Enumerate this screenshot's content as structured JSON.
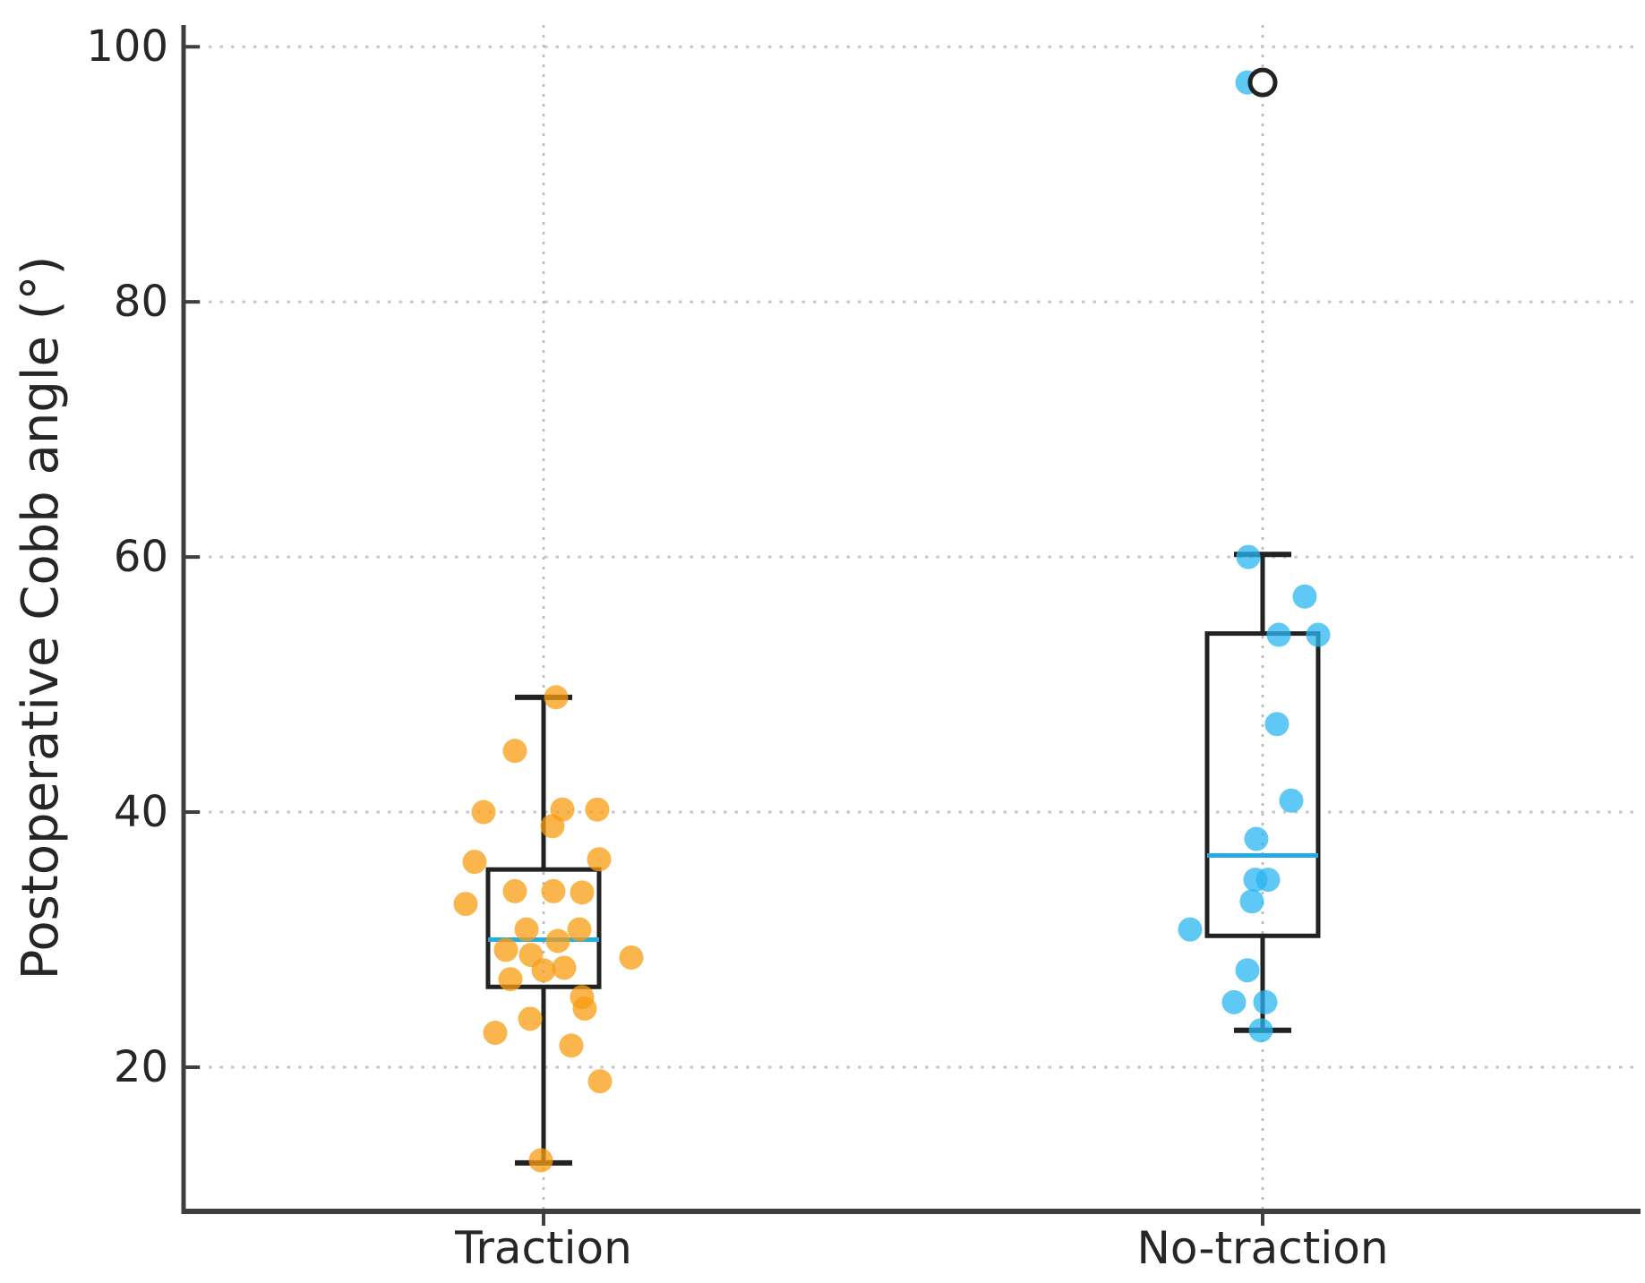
{
  "figure": {
    "background": "#ffffff"
  },
  "chart_data": {
    "type": "boxplot",
    "title": "",
    "xlabel": "",
    "ylabel": "Postoperative Cobb angle (°)",
    "ylim": [
      8.7,
      101.7
    ],
    "yticks": [
      20,
      40,
      60,
      80,
      100
    ],
    "grid": "dotted horizontal gridlines at yticks; dotted vertical gridline at each category; no top/right spines",
    "legend": "none",
    "categories": [
      "Traction",
      "No-traction"
    ],
    "style": {
      "background": "#ffffff",
      "grid_color": "#c6c6c6",
      "category_grid_color": "#b8b8b8",
      "axis_color": "#3f3f3f",
      "box_color": "#222222",
      "median_color": "#29ABE2",
      "text_color": "#262626",
      "outlier_fill": "#ffffff",
      "point_opacity": 0.75
    },
    "groups": [
      {
        "label": "Traction",
        "point_color": "#F89C12",
        "box": {
          "whisker_low": 12.5,
          "q1": 26.3,
          "median": 30.0,
          "q3": 35.5,
          "whisker_high": 49.0
        },
        "outliers": [],
        "points": [
          {
            "v": 49.0,
            "dx": 14
          },
          {
            "v": 44.8,
            "dx": -32
          },
          {
            "v": 40.0,
            "dx": -67
          },
          {
            "v": 40.2,
            "dx": 21
          },
          {
            "v": 40.2,
            "dx": 60
          },
          {
            "v": 38.9,
            "dx": 10
          },
          {
            "v": 36.1,
            "dx": -77
          },
          {
            "v": 36.3,
            "dx": 62
          },
          {
            "v": 33.8,
            "dx": -32
          },
          {
            "v": 33.8,
            "dx": 11
          },
          {
            "v": 33.7,
            "dx": 43
          },
          {
            "v": 32.8,
            "dx": -87
          },
          {
            "v": 30.8,
            "dx": -19
          },
          {
            "v": 30.8,
            "dx": 40
          },
          {
            "v": 29.9,
            "dx": 16
          },
          {
            "v": 29.2,
            "dx": -42
          },
          {
            "v": 28.8,
            "dx": -14
          },
          {
            "v": 28.6,
            "dx": 98
          },
          {
            "v": 27.8,
            "dx": 23
          },
          {
            "v": 27.6,
            "dx": 0
          },
          {
            "v": 26.9,
            "dx": -37
          },
          {
            "v": 25.5,
            "dx": 43
          },
          {
            "v": 24.6,
            "dx": 46
          },
          {
            "v": 23.8,
            "dx": -15
          },
          {
            "v": 22.7,
            "dx": -54
          },
          {
            "v": 21.7,
            "dx": 31
          },
          {
            "v": 18.9,
            "dx": 63
          },
          {
            "v": 12.7,
            "dx": -3
          }
        ]
      },
      {
        "label": "No-traction",
        "point_color": "#29B6F0",
        "box": {
          "whisker_low": 22.9,
          "q1": 30.3,
          "median": 36.6,
          "q3": 54.0,
          "whisker_high": 60.2
        },
        "outliers": [
          97.2
        ],
        "points": [
          {
            "v": 97.2,
            "dx": -17
          },
          {
            "v": 60.0,
            "dx": -16
          },
          {
            "v": 56.9,
            "dx": 47
          },
          {
            "v": 53.9,
            "dx": 18
          },
          {
            "v": 53.9,
            "dx": 62
          },
          {
            "v": 46.9,
            "dx": 16
          },
          {
            "v": 40.9,
            "dx": 32
          },
          {
            "v": 37.9,
            "dx": -7
          },
          {
            "v": 34.7,
            "dx": -8
          },
          {
            "v": 34.7,
            "dx": 6
          },
          {
            "v": 33.0,
            "dx": -12
          },
          {
            "v": 30.8,
            "dx": -81
          },
          {
            "v": 27.6,
            "dx": -17
          },
          {
            "v": 25.1,
            "dx": -32
          },
          {
            "v": 25.1,
            "dx": 3
          },
          {
            "v": 22.9,
            "dx": -2
          }
        ]
      }
    ]
  }
}
